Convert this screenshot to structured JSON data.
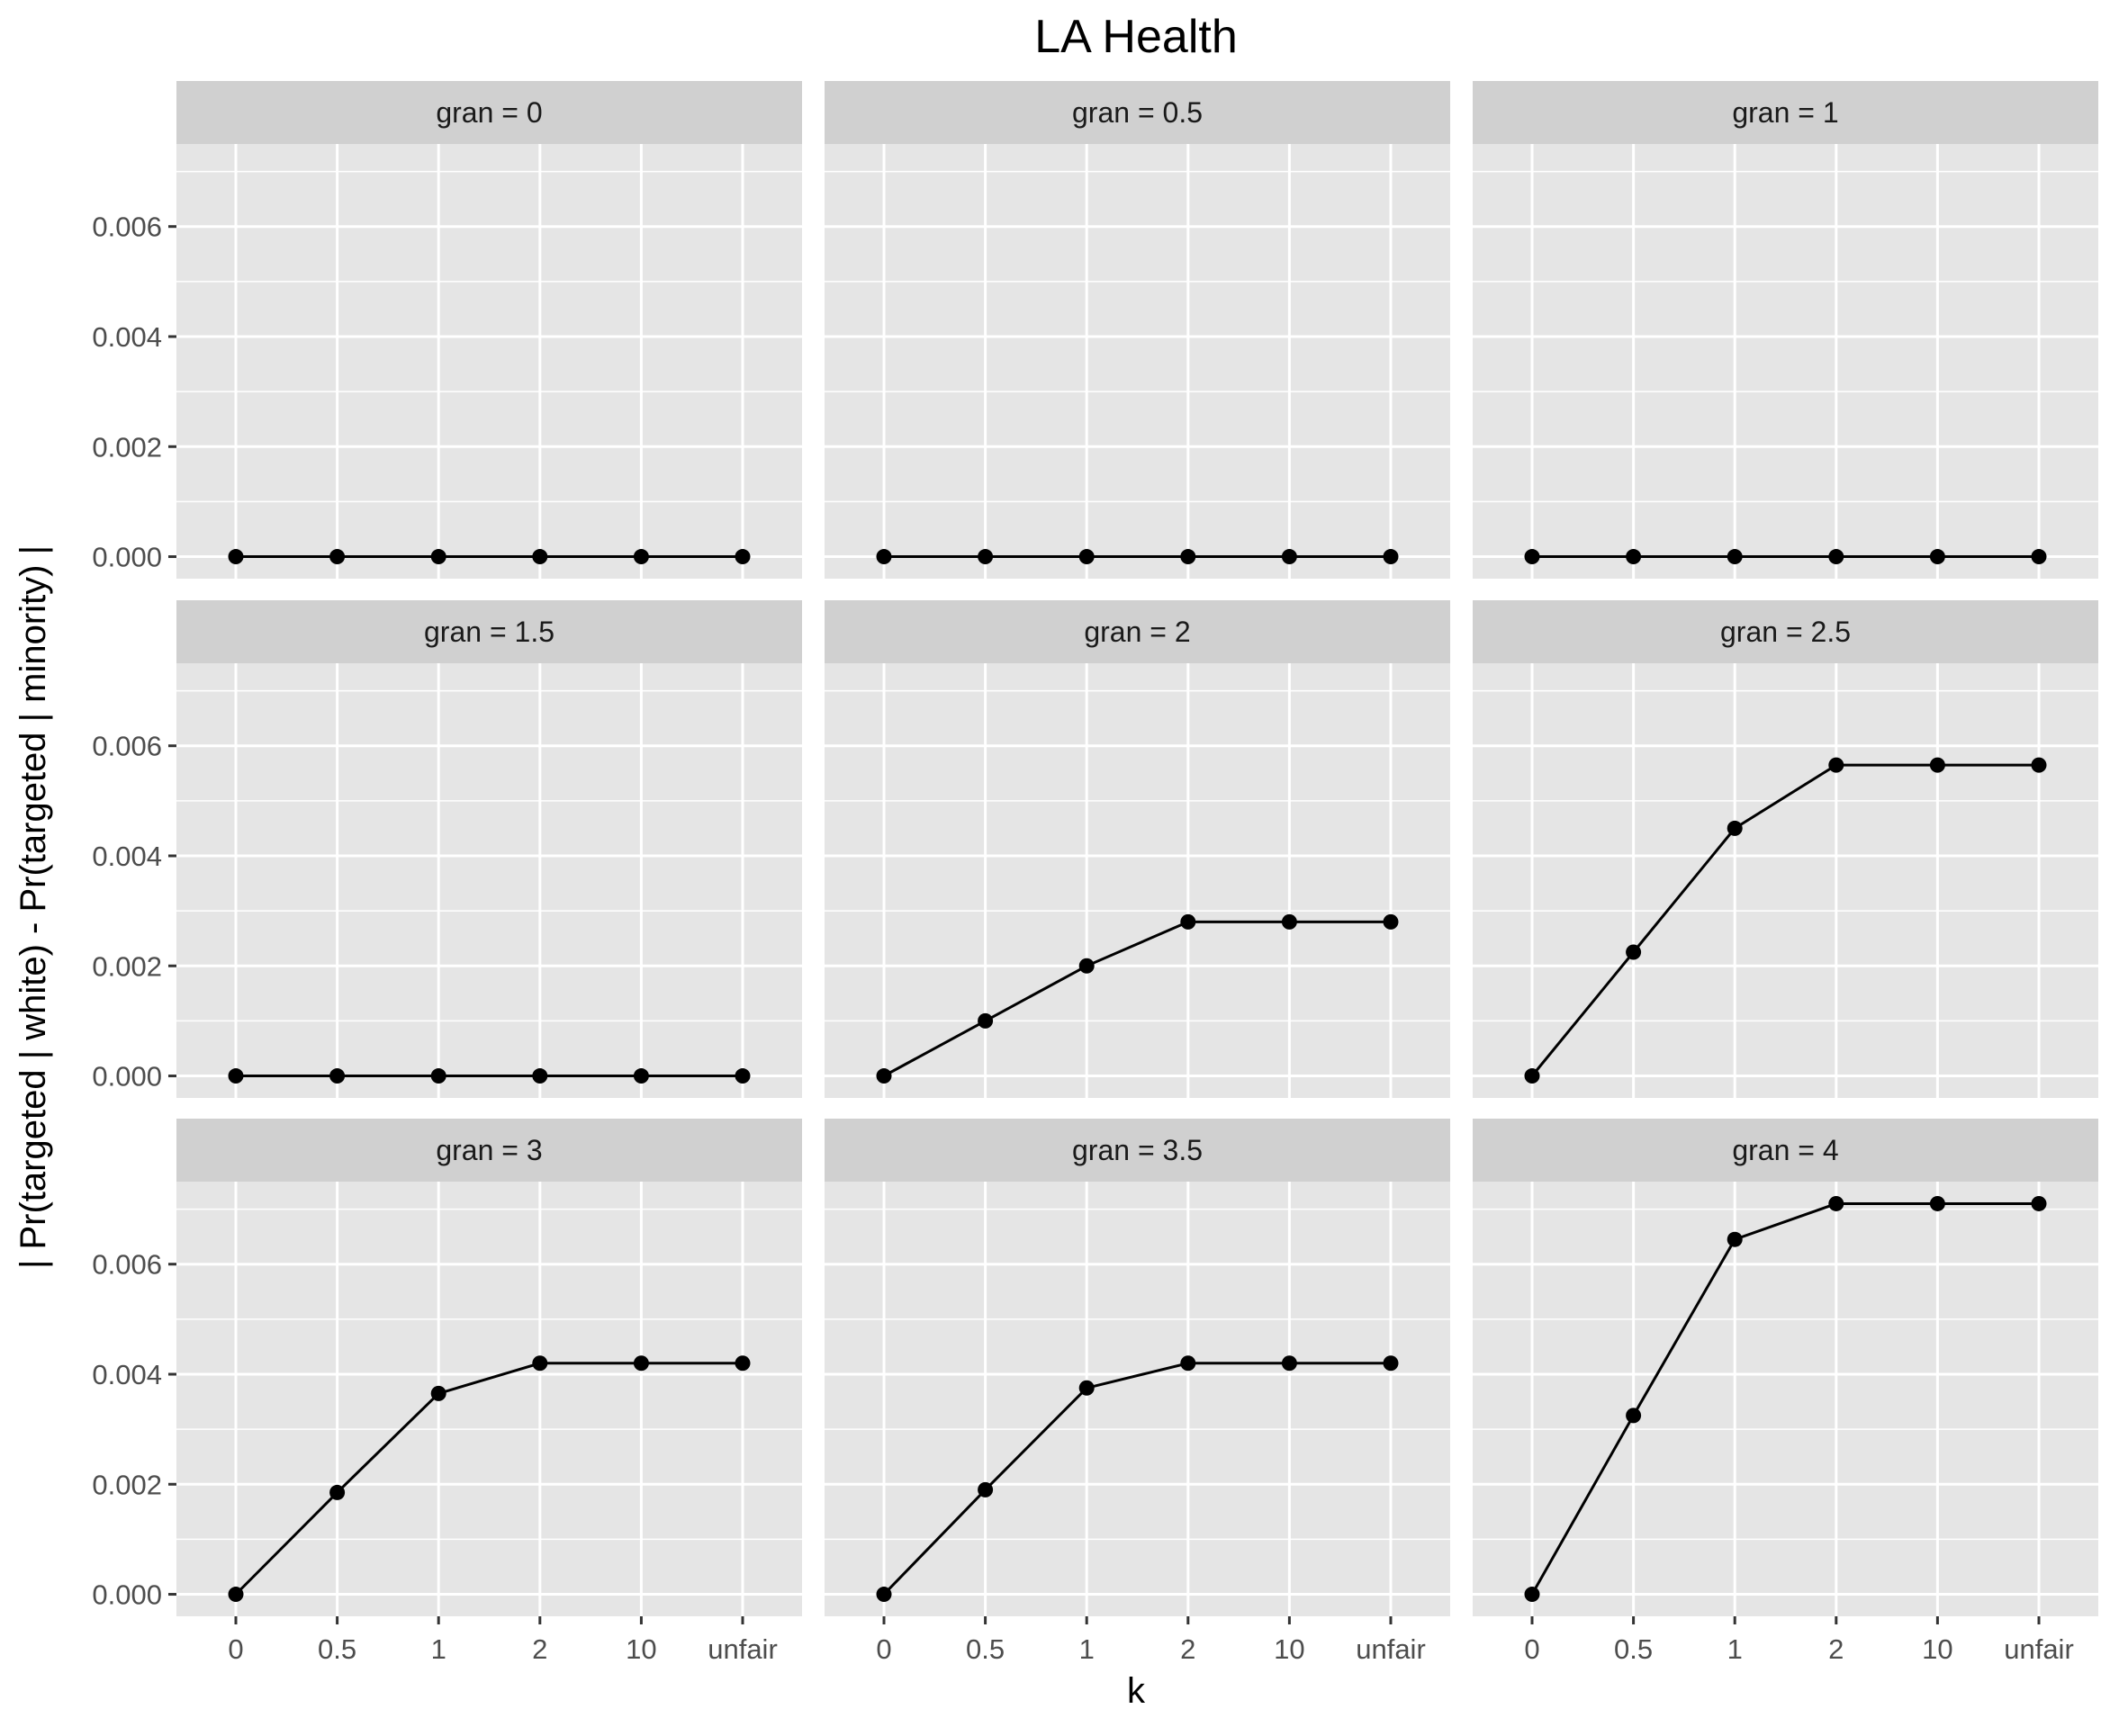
{
  "chart_data": {
    "type": "line",
    "title": "LA Health",
    "xlabel": "k",
    "ylabel": "| Pr(targeted | white) - Pr(targeted | minority) |",
    "x": [
      "0",
      "0.5",
      "1",
      "2",
      "10",
      "unfair"
    ],
    "ylim": [
      -0.0004,
      0.0075
    ],
    "yticks": [
      0,
      0.002,
      0.004,
      0.006
    ],
    "ytick_labels": [
      "0.000",
      "0.002",
      "0.004",
      "0.006"
    ],
    "grid": true,
    "facet_label_prefix": "gran = ",
    "panels": [
      {
        "label": "gran =  0",
        "values": [
          0,
          0,
          0,
          0,
          0,
          0
        ]
      },
      {
        "label": "gran =  0.5",
        "values": [
          0,
          0,
          0,
          0,
          0,
          0
        ]
      },
      {
        "label": "gran =  1",
        "values": [
          0,
          0,
          0,
          0,
          0,
          0
        ]
      },
      {
        "label": "gran =  1.5",
        "values": [
          0,
          0,
          0,
          0,
          0,
          0
        ]
      },
      {
        "label": "gran =  2",
        "values": [
          0,
          0.001,
          0.002,
          0.0028,
          0.0028,
          0.0028
        ]
      },
      {
        "label": "gran =  2.5",
        "values": [
          0,
          0.00225,
          0.0045,
          0.00565,
          0.00565,
          0.00565
        ]
      },
      {
        "label": "gran =  3",
        "values": [
          0,
          0.00185,
          0.00365,
          0.0042,
          0.0042,
          0.0042
        ]
      },
      {
        "label": "gran =  3.5",
        "values": [
          0,
          0.0019,
          0.00375,
          0.0042,
          0.0042,
          0.0042
        ]
      },
      {
        "label": "gran =  4",
        "values": [
          0,
          0.00325,
          0.00645,
          0.0071,
          0.0071,
          0.0071
        ]
      }
    ]
  }
}
